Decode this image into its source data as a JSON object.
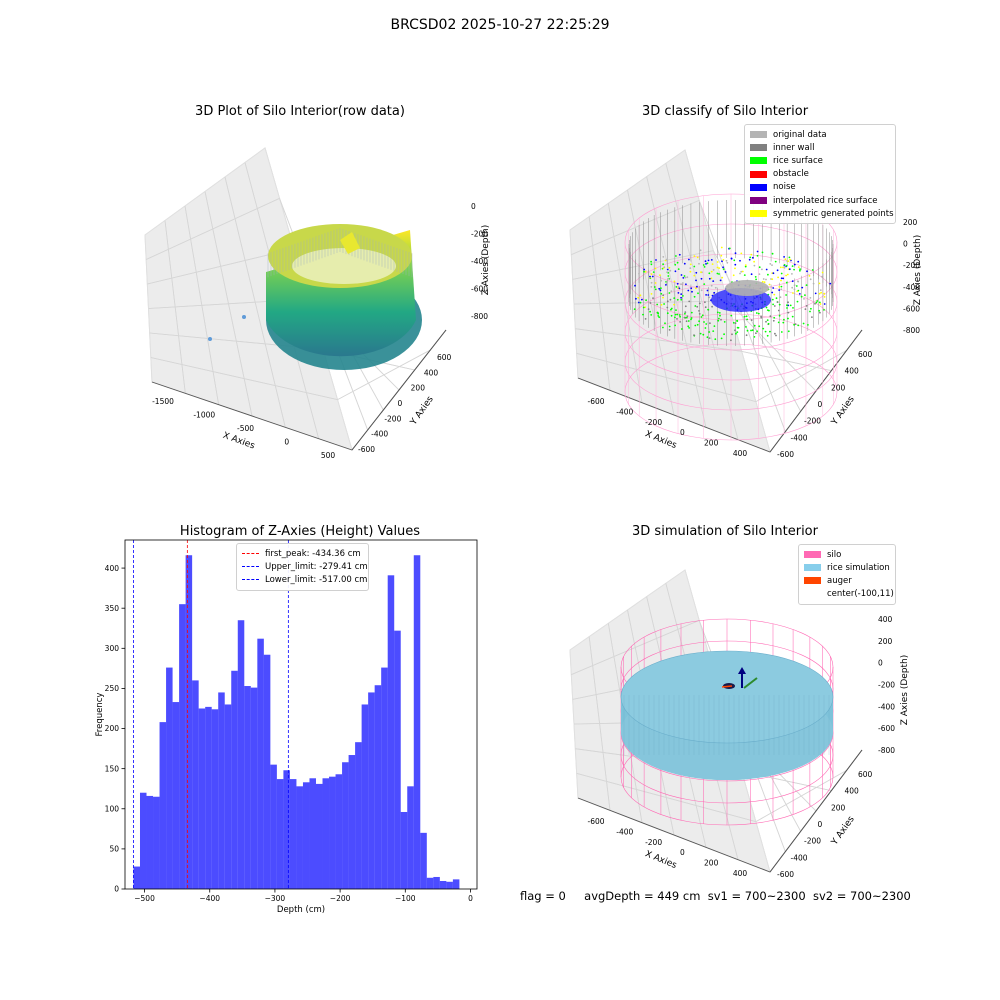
{
  "figure": {
    "suptitle": "BRCSD02 2025-10-27 22:25:29",
    "status": {
      "flag": "flag = 0",
      "avg_depth": "avgDepth = 449 cm",
      "sv1": "sv1 = 700~2300",
      "sv2": "sv2 = 700~2300"
    }
  },
  "chart_data": [
    {
      "type": "scatter",
      "title": "3D Plot of Silo Interior(row data)",
      "xlabel": "X Axies",
      "ylabel": "Y Axies",
      "zlabel": "Z Axies (Depth)",
      "x_ticks": [
        "-1500",
        "-1000",
        "-500",
        "0",
        "500"
      ],
      "y_ticks": [
        "-600",
        "-400",
        "-200",
        "0",
        "200",
        "400",
        "600"
      ],
      "z_ticks": [
        "0",
        "-200",
        "-400",
        "-600",
        "-800"
      ],
      "colormap": "viridis"
    },
    {
      "type": "scatter",
      "title": "3D classify of Silo Interior",
      "xlabel": "X Axies",
      "ylabel": "Y Axies",
      "zlabel": "Z Axies (Depth)",
      "x_ticks": [
        "-600",
        "-400",
        "-200",
        "0",
        "200",
        "400"
      ],
      "y_ticks": [
        "-600",
        "-400",
        "-200",
        "0",
        "200",
        "400",
        "600"
      ],
      "z_ticks": [
        "200",
        "0",
        "-200",
        "-400",
        "-600",
        "-800"
      ],
      "legend": [
        {
          "label": "original data",
          "color": "#b4b4b4"
        },
        {
          "label": "inner wall",
          "color": "#808080"
        },
        {
          "label": "rice surface",
          "color": "#00ff00"
        },
        {
          "label": "obstacle",
          "color": "#ff0000"
        },
        {
          "label": "noise",
          "color": "#0000ff"
        },
        {
          "label": "interpolated rice surface",
          "color": "#800080"
        },
        {
          "label": "symmetric generated points",
          "color": "#ffff00"
        }
      ]
    },
    {
      "type": "bar",
      "title": "Histogram of Z-Axies (Height) Values",
      "xlabel": "Depth (cm)",
      "ylabel": "Frequency",
      "xlim": [
        -530,
        10
      ],
      "ylim": [
        0,
        435
      ],
      "x_ticks": [
        -500,
        -400,
        -300,
        -200,
        -100,
        0
      ],
      "y_ticks": [
        0,
        50,
        100,
        150,
        200,
        250,
        300,
        350,
        400
      ],
      "bins": [
        -517,
        -507,
        -497,
        -487,
        -477,
        -467,
        -457,
        -447,
        -437,
        -427,
        -417,
        -407,
        -397,
        -387,
        -377,
        -367,
        -357,
        -347,
        -337,
        -327,
        -317,
        -307,
        -297,
        -287,
        -277,
        -267,
        -257,
        -247,
        -237,
        -227,
        -217,
        -207,
        -197,
        -187,
        -177,
        -167,
        -157,
        -147,
        -137,
        -127,
        -117,
        -107,
        -97,
        -87,
        -77,
        -67,
        -57,
        -47,
        -37,
        -27,
        -17,
        -7
      ],
      "bin_width": 10,
      "values": [
        28,
        120,
        116,
        115,
        208,
        276,
        233,
        355,
        416,
        260,
        225,
        227,
        224,
        245,
        230,
        272,
        335,
        253,
        251,
        312,
        292,
        155,
        137,
        148,
        137,
        128,
        133,
        138,
        131,
        138,
        140,
        143,
        158,
        167,
        183,
        230,
        245,
        254,
        276,
        391,
        322,
        96,
        128,
        416,
        70,
        14,
        15,
        10,
        9,
        12,
        0,
        0
      ],
      "color": "#0000ff",
      "ref_lines": [
        {
          "label": "first_peak: -434.36 cm",
          "x": -434.36,
          "color": "#ff0000"
        },
        {
          "label": "Upper_limit: -279.41 cm",
          "x": -279.41,
          "color": "#0000ff"
        },
        {
          "label": "Lower_limit: -517.00 cm",
          "x": -517.0,
          "color": "#0000ff"
        }
      ]
    },
    {
      "type": "scatter",
      "title": "3D simulation of Silo Interior",
      "xlabel": "X Axies",
      "ylabel": "Y Axies",
      "zlabel": "Z Axies (Depth)",
      "x_ticks": [
        "-600",
        "-400",
        "-200",
        "0",
        "200",
        "400"
      ],
      "y_ticks": [
        "-600",
        "-400",
        "-200",
        "0",
        "200",
        "400",
        "600"
      ],
      "z_ticks": [
        "400",
        "200",
        "0",
        "-200",
        "-400",
        "-600",
        "-800"
      ],
      "legend": [
        {
          "label": "silo",
          "color": "#ff69b4"
        },
        {
          "label": "rice simulation",
          "color": "#87ceeb"
        },
        {
          "label": "auger",
          "color": "#ff4500"
        },
        {
          "label": "center(-100,11)",
          "color": ""
        }
      ]
    }
  ]
}
